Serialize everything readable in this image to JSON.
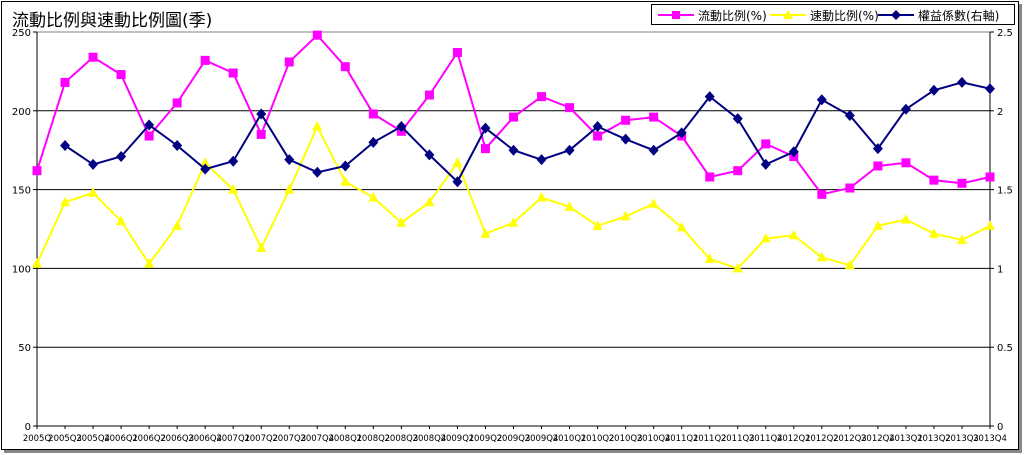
{
  "chart_data": {
    "type": "line",
    "title": "流動比例與速動比例圖(季)",
    "categories": [
      "2005Q",
      "2005Q3",
      "2005Q4",
      "2006Q1",
      "2006Q2",
      "2006Q3",
      "2006Q4",
      "2007Q1",
      "2007Q2",
      "2007Q3",
      "2007Q4",
      "2008Q1",
      "2008Q2",
      "2008Q3",
      "2008Q4",
      "2009Q1",
      "2009Q2",
      "2009Q3",
      "2009Q4",
      "2010Q1",
      "2010Q2",
      "2010Q3",
      "2010Q4",
      "2011Q1",
      "2011Q2",
      "2011Q3",
      "2011Q4",
      "2012Q1",
      "2012Q2",
      "2012Q3",
      "2012Q4",
      "2013Q1",
      "2013Q2",
      "2013Q3",
      "2013Q4"
    ],
    "y_left": {
      "min": 0,
      "max": 250,
      "ticks": [
        "0",
        "50",
        "100",
        "150",
        "200",
        "250"
      ]
    },
    "y_right": {
      "min": 0,
      "max": 2.5,
      "ticks": [
        "0",
        "0.5",
        "1",
        "1.5",
        "2",
        "2.5"
      ]
    },
    "grid": true,
    "legend_position": "top-right",
    "series": [
      {
        "name": "流動比例(%)",
        "axis": "left",
        "color": "#ff00ff",
        "marker": "square",
        "values": [
          162,
          218,
          234,
          223,
          184,
          205,
          232,
          224,
          185,
          231,
          248,
          228,
          198,
          187,
          210,
          237,
          176,
          196,
          209,
          202,
          184,
          194,
          196,
          184,
          158,
          162,
          179,
          171,
          147,
          151,
          165,
          167,
          156,
          154,
          158
        ]
      },
      {
        "name": "速動比例(%)",
        "axis": "left",
        "color": "#ffff00",
        "marker": "triangle",
        "values": [
          103,
          142,
          148,
          130,
          103,
          127,
          167,
          150,
          113,
          150,
          190,
          155,
          145,
          129,
          142,
          167,
          122,
          129,
          145,
          139,
          127,
          133,
          141,
          126,
          106,
          100,
          119,
          121,
          107,
          102,
          127,
          131,
          122,
          118,
          127
        ]
      },
      {
        "name": "權益係數(右軸)",
        "axis": "right",
        "color": "#000080",
        "marker": "diamond",
        "values": [
          null,
          1.78,
          1.66,
          1.71,
          1.91,
          1.78,
          1.63,
          1.68,
          1.98,
          1.69,
          1.61,
          1.65,
          1.8,
          1.9,
          1.72,
          1.55,
          1.89,
          1.75,
          1.69,
          1.75,
          1.9,
          1.82,
          1.75,
          1.86,
          2.09,
          1.95,
          1.66,
          1.74,
          2.07,
          1.97,
          1.76,
          2.01,
          2.13,
          2.18,
          2.14
        ]
      }
    ]
  }
}
